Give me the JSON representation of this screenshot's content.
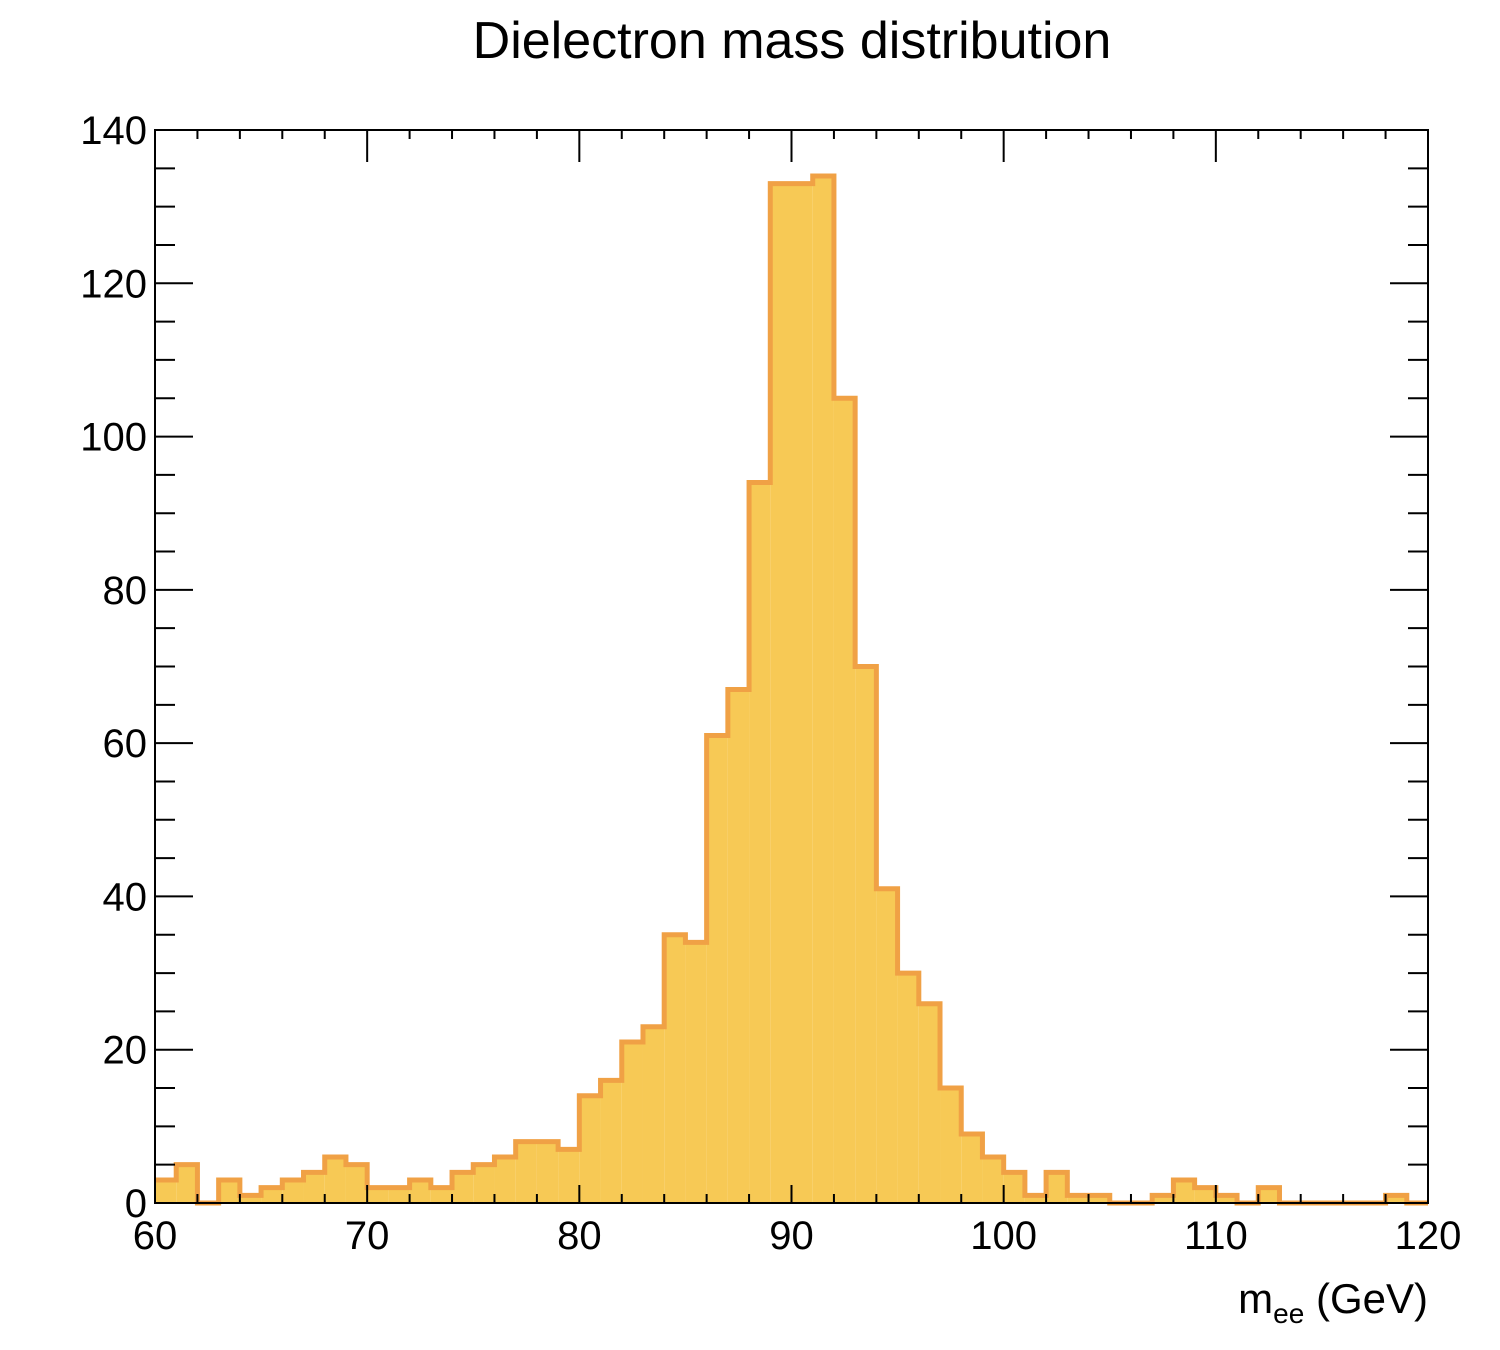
{
  "chart_data": {
    "type": "bar",
    "title": "Dielectron mass distribution",
    "xlabel": {
      "main": "m",
      "subscript": "ee",
      "suffix": " (GeV)"
    },
    "ylabel": "",
    "xlim": [
      60,
      120
    ],
    "ylim": [
      0,
      140
    ],
    "bin_width": 1,
    "x_ticks": [
      60,
      70,
      80,
      90,
      100,
      110,
      120
    ],
    "y_ticks": [
      0,
      20,
      40,
      60,
      80,
      100,
      120,
      140
    ],
    "x_tick_labels": [
      "60",
      "70",
      "80",
      "90",
      "100",
      "110",
      "120"
    ],
    "y_tick_labels": [
      "0",
      "20",
      "40",
      "60",
      "80",
      "100",
      "120",
      "140"
    ],
    "grid": false,
    "fill_color": "#f7c955",
    "line_color": "#f0a145",
    "series": [
      {
        "x_start": 60,
        "values": [
          3,
          5,
          0,
          3,
          1,
          2,
          3,
          4,
          6,
          5,
          2,
          2,
          3,
          2,
          4,
          5,
          6,
          8,
          8,
          7,
          14,
          16,
          21,
          23,
          35,
          34,
          61,
          67,
          94,
          133,
          133,
          134,
          105,
          70,
          41,
          30,
          26,
          15,
          9,
          6,
          4,
          1,
          4,
          1,
          1,
          0,
          0,
          1,
          3,
          2,
          1,
          0,
          2,
          0,
          0,
          0,
          0,
          0,
          1,
          0
        ]
      }
    ]
  }
}
